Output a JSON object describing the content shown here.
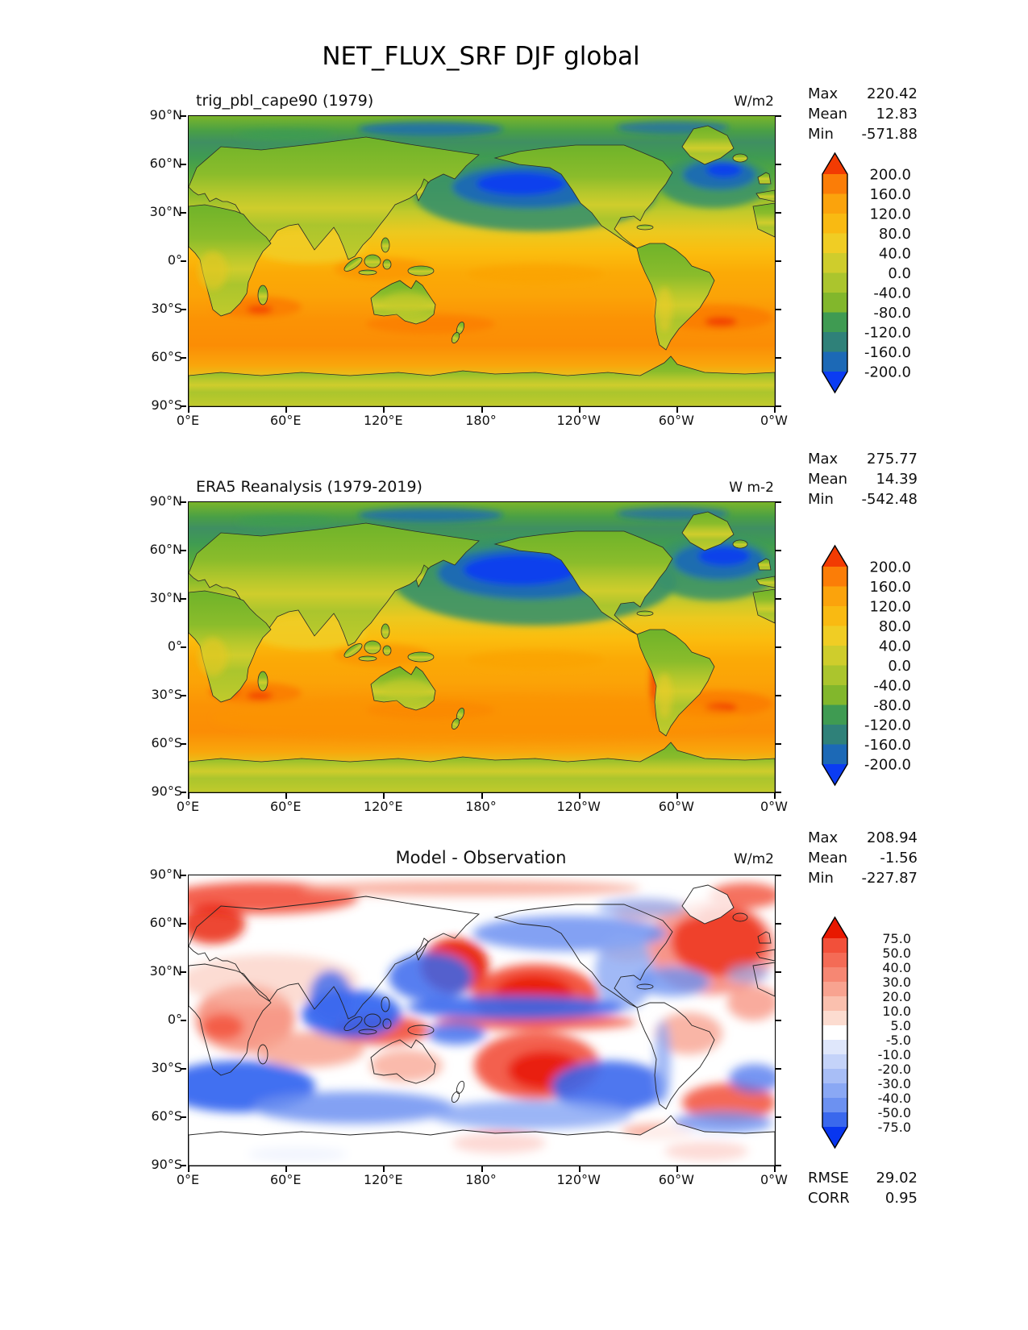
{
  "figure_title": "NET_FLUX_SRF DJF global",
  "axes": {
    "x_ticks": [
      "0°E",
      "60°E",
      "120°E",
      "180°",
      "120°W",
      "60°W",
      "0°W"
    ],
    "y_ticks": [
      "90°N",
      "60°N",
      "30°N",
      "0°",
      "30°S",
      "60°S",
      "90°S"
    ]
  },
  "panels": [
    {
      "title": "trig_pbl_cape90 (1979)",
      "units": "W/m2",
      "stats": [
        [
          "Max",
          "220.42"
        ],
        [
          "Mean",
          "12.83"
        ],
        [
          "Min",
          "-571.88"
        ]
      ]
    },
    {
      "title": "ERA5 Reanalysis (1979-2019)",
      "units": "W m-2",
      "stats": [
        [
          "Max",
          "275.77"
        ],
        [
          "Mean",
          "14.39"
        ],
        [
          "Min",
          "-542.48"
        ]
      ]
    },
    {
      "title": "Model - Observation",
      "units": "W/m2",
      "stats": [
        [
          "Max",
          "208.94"
        ],
        [
          "Mean",
          "-1.56"
        ],
        [
          "Min",
          "-227.87"
        ]
      ],
      "extra_stats": [
        [
          "RMSE",
          "29.02"
        ],
        [
          "CORR",
          "0.95"
        ]
      ]
    }
  ],
  "colorbars": [
    {
      "labels": [
        "200.0",
        "160.0",
        "120.0",
        "80.0",
        "40.0",
        "0.0",
        "-40.0",
        "-80.0",
        "-120.0",
        "-160.0",
        "-200.0"
      ],
      "colors": [
        "#f23b02",
        "#fb7d07",
        "#fba30c",
        "#f9ba12",
        "#f0cd24",
        "#cfcd2c",
        "#abc52d",
        "#82b72c",
        "#3f9b52",
        "#2f8179",
        "#1c69b6",
        "#0b3cf2"
      ]
    },
    {
      "labels": [
        "200.0",
        "160.0",
        "120.0",
        "80.0",
        "40.0",
        "0.0",
        "-40.0",
        "-80.0",
        "-120.0",
        "-160.0",
        "-200.0"
      ],
      "colors": [
        "#f23b02",
        "#fb7d07",
        "#fba30c",
        "#f9ba12",
        "#f0cd24",
        "#cfcd2c",
        "#abc52d",
        "#82b72c",
        "#3f9b52",
        "#2f8179",
        "#1c69b6",
        "#0b3cf2"
      ]
    },
    {
      "labels": [
        "75.0",
        "50.0",
        "40.0",
        "30.0",
        "20.0",
        "10.0",
        "5.0",
        "-5.0",
        "-10.0",
        "-20.0",
        "-30.0",
        "-40.0",
        "-50.0",
        "-75.0"
      ],
      "colors": [
        "#e81800",
        "#f2503a",
        "#f46b56",
        "#f68773",
        "#f8a390",
        "#fac0ae",
        "#fcdcd0",
        "#ffffff",
        "#dfe7fb",
        "#c4d3f9",
        "#a8bef6",
        "#8aa8f4",
        "#6c91f1",
        "#3a68ed",
        "#0836f0"
      ]
    }
  ],
  "chart_data": [
    {
      "type": "heatmap",
      "title": "trig_pbl_cape90 (1979)",
      "variable": "NET_FLUX_SRF",
      "season": "DJF",
      "region": "global",
      "units": "W/m2",
      "stats": {
        "max": 220.42,
        "mean": 12.83,
        "min": -571.88
      },
      "contour_levels": [
        -200,
        -160,
        -120,
        -80,
        -40,
        0,
        40,
        80,
        120,
        160,
        200
      ],
      "colorbar_extend": "both",
      "x_ticks": [
        "0°E",
        "60°E",
        "120°E",
        "180°",
        "120°W",
        "60°W",
        "0°W"
      ],
      "y_ticks": [
        "90°N",
        "60°N",
        "30°N",
        "0°",
        "30°S",
        "60°S",
        "90°S"
      ]
    },
    {
      "type": "heatmap",
      "title": "ERA5 Reanalysis (1979-2019)",
      "variable": "NET_FLUX_SRF",
      "season": "DJF",
      "region": "global",
      "units": "W m-2",
      "stats": {
        "max": 275.77,
        "mean": 14.39,
        "min": -542.48
      },
      "contour_levels": [
        -200,
        -160,
        -120,
        -80,
        -40,
        0,
        40,
        80,
        120,
        160,
        200
      ],
      "colorbar_extend": "both",
      "x_ticks": [
        "0°E",
        "60°E",
        "120°E",
        "180°",
        "120°W",
        "60°W",
        "0°W"
      ],
      "y_ticks": [
        "90°N",
        "60°N",
        "30°N",
        "0°",
        "30°S",
        "60°S",
        "90°S"
      ]
    },
    {
      "type": "heatmap",
      "title": "Model - Observation",
      "variable": "NET_FLUX_SRF difference",
      "season": "DJF",
      "region": "global",
      "units": "W/m2",
      "stats": {
        "max": 208.94,
        "mean": -1.56,
        "min": -227.87
      },
      "rmse": 29.02,
      "corr": 0.95,
      "contour_levels": [
        -75,
        -50,
        -40,
        -30,
        -20,
        -10,
        -5,
        5,
        10,
        20,
        30,
        40,
        50,
        75
      ],
      "colorbar_extend": "both",
      "x_ticks": [
        "0°E",
        "60°E",
        "120°E",
        "180°",
        "120°W",
        "60°W",
        "0°W"
      ],
      "y_ticks": [
        "90°N",
        "60°N",
        "30°N",
        "0°",
        "30°S",
        "60°S",
        "90°S"
      ]
    }
  ]
}
